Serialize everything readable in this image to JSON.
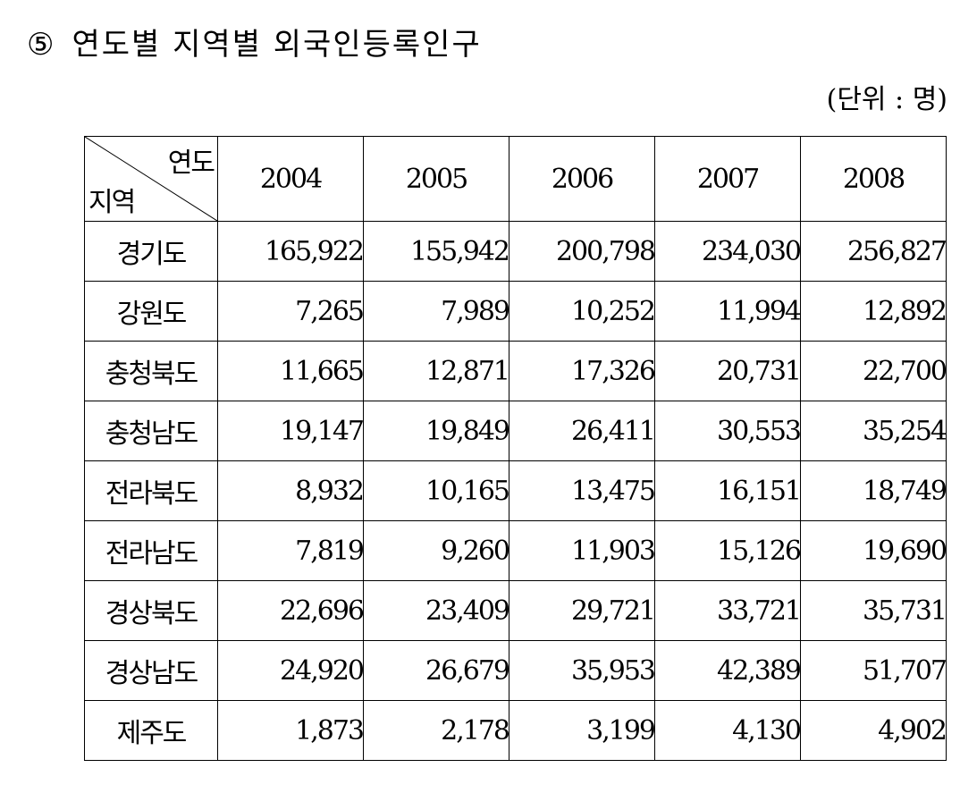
{
  "title": {
    "number": "⑤",
    "text": "연도별 지역별 외국인등록인구"
  },
  "unit": "(단위 : 명)",
  "table": {
    "corner_top": "연도",
    "corner_bottom": "지역",
    "years": [
      "2004",
      "2005",
      "2006",
      "2007",
      "2008"
    ],
    "rows": [
      {
        "region": "경기도",
        "values": [
          "165,922",
          "155,942",
          "200,798",
          "234,030",
          "256,827"
        ]
      },
      {
        "region": "강원도",
        "values": [
          "7,265",
          "7,989",
          "10,252",
          "11,994",
          "12,892"
        ]
      },
      {
        "region": "충청북도",
        "values": [
          "11,665",
          "12,871",
          "17,326",
          "20,731",
          "22,700"
        ]
      },
      {
        "region": "충청남도",
        "values": [
          "19,147",
          "19,849",
          "26,411",
          "30,553",
          "35,254"
        ]
      },
      {
        "region": "전라북도",
        "values": [
          "8,932",
          "10,165",
          "13,475",
          "16,151",
          "18,749"
        ]
      },
      {
        "region": "전라남도",
        "values": [
          "7,819",
          "9,260",
          "11,903",
          "15,126",
          "19,690"
        ]
      },
      {
        "region": "경상북도",
        "values": [
          "22,696",
          "23,409",
          "29,721",
          "33,721",
          "35,731"
        ]
      },
      {
        "region": "경상남도",
        "values": [
          "24,920",
          "26,679",
          "35,953",
          "42,389",
          "51,707"
        ]
      },
      {
        "region": "제주도",
        "values": [
          "1,873",
          "2,178",
          "3,199",
          "4,130",
          "4,902"
        ]
      }
    ]
  }
}
